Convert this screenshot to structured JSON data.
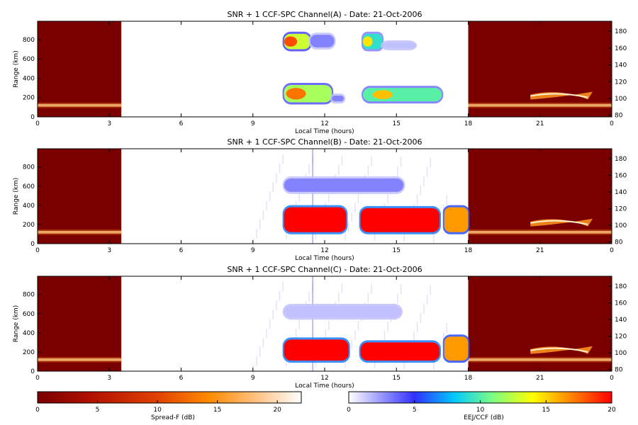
{
  "chart_data": [
    {
      "type": "heatmap",
      "title": "SNR + 1 CCF-SPC Channel(A) - Date: 21-Oct-2006",
      "xlabel": "Local Time (hours)",
      "ylabel": "Range (km)",
      "x_ticks": [
        "0",
        "3",
        "6",
        "9",
        "12",
        "15",
        "18",
        "21",
        "0"
      ],
      "y_ticks": [
        "0",
        "200",
        "400",
        "600",
        "800"
      ],
      "y2_ticks": [
        "80",
        "100",
        "120",
        "140",
        "160",
        "180"
      ],
      "xlim": [
        0,
        24
      ],
      "ylim": [
        0,
        990
      ],
      "y2lim": [
        78,
        192
      ],
      "spread_f_blocks": [
        [
          0,
          3.5
        ],
        [
          18,
          24
        ]
      ],
      "blobs": [
        {
          "x0": 10.3,
          "x1": 11.4,
          "y0": 700,
          "y1": 860,
          "level": 12
        },
        {
          "x0": 11.4,
          "x1": 12.4,
          "y0": 720,
          "y1": 850,
          "level": 2
        },
        {
          "x0": 13.6,
          "x1": 14.4,
          "y0": 700,
          "y1": 860,
          "level": 8
        },
        {
          "x0": 14.4,
          "x1": 15.8,
          "y0": 710,
          "y1": 770,
          "level": 1
        },
        {
          "x0": 10.3,
          "x1": 12.3,
          "y0": 150,
          "y1": 330,
          "level": 11
        },
        {
          "x0": 12.3,
          "x1": 12.8,
          "y0": 160,
          "y1": 220,
          "level": 2
        },
        {
          "x0": 13.6,
          "x1": 16.9,
          "y0": 160,
          "y1": 300,
          "level": 9
        }
      ]
    },
    {
      "type": "heatmap",
      "title": "SNR + 1 CCF-SPC Channel(B) - Date: 21-Oct-2006",
      "xlabel": "Local Time (hours)",
      "ylabel": "Range (km)",
      "x_ticks": [
        "0",
        "3",
        "6",
        "9",
        "12",
        "15",
        "18",
        "21",
        "0"
      ],
      "y_ticks": [
        "0",
        "200",
        "400",
        "600",
        "800"
      ],
      "y2_ticks": [
        "80",
        "100",
        "120",
        "140",
        "160",
        "180"
      ],
      "xlim": [
        0,
        24
      ],
      "ylim": [
        0,
        990
      ],
      "y2lim": [
        78,
        192
      ],
      "spread_f_blocks": [
        [
          0,
          3.5
        ],
        [
          18,
          24
        ]
      ],
      "blobs": [
        {
          "x0": 10.3,
          "x1": 15.3,
          "y0": 540,
          "y1": 680,
          "level": 2
        },
        {
          "x0": 10.3,
          "x1": 12.9,
          "y0": 120,
          "y1": 380,
          "level": 20
        },
        {
          "x0": 13.5,
          "x1": 16.8,
          "y0": 120,
          "y1": 370,
          "level": 20
        },
        {
          "x0": 17.0,
          "x1": 18.0,
          "y0": 120,
          "y1": 380,
          "level": 16
        }
      ]
    },
    {
      "type": "heatmap",
      "title": "SNR + 1 CCF-SPC Channel(C) - Date: 21-Oct-2006",
      "xlabel": "Local Time (hours)",
      "ylabel": "Range (km)",
      "x_ticks": [
        "0",
        "3",
        "6",
        "9",
        "12",
        "15",
        "18",
        "21",
        "0"
      ],
      "y_ticks": [
        "0",
        "200",
        "400",
        "600",
        "800"
      ],
      "y2_ticks": [
        "80",
        "100",
        "120",
        "140",
        "160",
        "180"
      ],
      "xlim": [
        0,
        24
      ],
      "ylim": [
        0,
        990
      ],
      "y2lim": [
        78,
        192
      ],
      "spread_f_blocks": [
        [
          0,
          3.5
        ],
        [
          18,
          24
        ]
      ],
      "blobs": [
        {
          "x0": 10.3,
          "x1": 15.2,
          "y0": 560,
          "y1": 680,
          "level": 1
        },
        {
          "x0": 10.3,
          "x1": 13.0,
          "y0": 110,
          "y1": 330,
          "level": 20
        },
        {
          "x0": 13.5,
          "x1": 16.8,
          "y0": 110,
          "y1": 300,
          "level": 20
        },
        {
          "x0": 17.0,
          "x1": 18.0,
          "y0": 110,
          "y1": 360,
          "level": 16
        }
      ]
    }
  ],
  "colorbars": [
    {
      "label": "Spread-F (dB)",
      "ticks": [
        "0",
        "5",
        "10",
        "15",
        "20"
      ],
      "range": [
        0,
        22
      ],
      "colors": [
        "#7a0000",
        "#b01000",
        "#e04000",
        "#ff8a00",
        "#ffc890",
        "#ffffff"
      ]
    },
    {
      "label": "EEJ/CCF (dB)",
      "ticks": [
        "0",
        "5",
        "10",
        "15",
        "20"
      ],
      "range": [
        0,
        20
      ],
      "colors": [
        "#ffffff",
        "#3030ff",
        "#00c8ff",
        "#80ff80",
        "#ffff00",
        "#ff8000",
        "#ff0000"
      ]
    }
  ]
}
